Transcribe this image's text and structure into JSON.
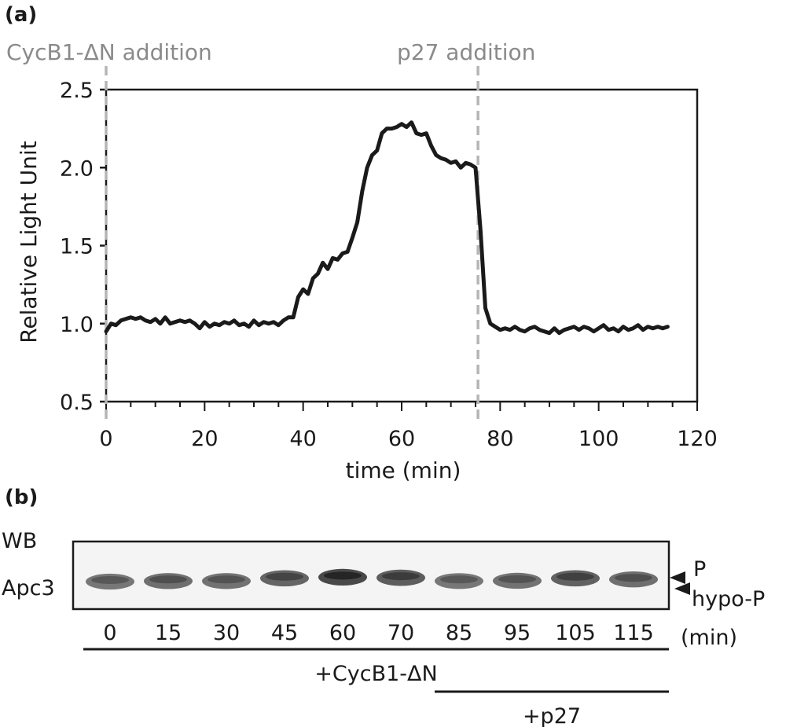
{
  "panel_a": {
    "label": "(a)",
    "annotations": [
      "CycB1-ΔN addition",
      "p27 addition"
    ]
  },
  "panel_b": {
    "label": "(b)",
    "wb_label": "WB",
    "protein_label": "Apc3",
    "band_labels": [
      "P",
      "hypo-P"
    ],
    "lanes": [
      "0",
      "15",
      "30",
      "45",
      "60",
      "70",
      "85",
      "95",
      "105",
      "115"
    ],
    "lane_unit": "(min)",
    "lane_intensity": [
      0.55,
      0.6,
      0.58,
      0.66,
      0.82,
      0.7,
      0.55,
      0.58,
      0.68,
      0.6
    ],
    "lane_phospho": [
      0.0,
      0.1,
      0.1,
      0.6,
      0.8,
      0.7,
      0.1,
      0.15,
      0.6,
      0.4
    ],
    "treatments": [
      {
        "label": "+CycB1-ΔN",
        "from_lane": 0,
        "to_lane": 9
      },
      {
        "label": "+p27",
        "from_lane": 6,
        "to_lane": 9
      }
    ]
  },
  "chart_data": {
    "type": "line",
    "xlabel": "time (min)",
    "ylabel": "Relative Light Unit",
    "xlim": [
      0,
      120
    ],
    "ylim": [
      0.5,
      2.5
    ],
    "xticks": [
      "0",
      "20",
      "40",
      "60",
      "80",
      "100",
      "120"
    ],
    "yticks": [
      "0.5",
      "1.0",
      "1.5",
      "2.0",
      "2.5"
    ],
    "vlines": [
      0,
      75.5
    ],
    "grid": false,
    "x": [
      0,
      1,
      2,
      3,
      4,
      5,
      6,
      7,
      8,
      9,
      10,
      11,
      12,
      13,
      14,
      15,
      16,
      17,
      18,
      19,
      20,
      21,
      22,
      23,
      24,
      25,
      26,
      27,
      28,
      29,
      30,
      31,
      32,
      33,
      34,
      35,
      36,
      37,
      38,
      39,
      40,
      41,
      42,
      43,
      44,
      45,
      46,
      47,
      48,
      49,
      50,
      51,
      52,
      53,
      54,
      55,
      56,
      57,
      58,
      59,
      60,
      61,
      62,
      63,
      64,
      65,
      66,
      67,
      68,
      69,
      70,
      71,
      72,
      73,
      74,
      75,
      76,
      77,
      78,
      79,
      80,
      81,
      82,
      83,
      84,
      85,
      86,
      87,
      88,
      89,
      90,
      91,
      92,
      93,
      94,
      95,
      96,
      97,
      98,
      99,
      100,
      101,
      102,
      103,
      104,
      105,
      106,
      107,
      108,
      109,
      110,
      111,
      112,
      113,
      114
    ],
    "y": [
      0.95,
      1.0,
      0.99,
      1.02,
      1.03,
      1.04,
      1.03,
      1.04,
      1.02,
      1.01,
      1.03,
      1.0,
      1.04,
      1.0,
      1.01,
      1.02,
      1.01,
      1.02,
      1.0,
      0.97,
      1.01,
      0.98,
      1.0,
      0.99,
      1.01,
      1.0,
      1.02,
      0.99,
      1.0,
      0.98,
      1.02,
      0.99,
      1.01,
      1.0,
      1.01,
      0.99,
      1.02,
      1.04,
      1.04,
      1.17,
      1.22,
      1.19,
      1.29,
      1.32,
      1.39,
      1.35,
      1.42,
      1.41,
      1.45,
      1.46,
      1.55,
      1.65,
      1.85,
      2.0,
      2.08,
      2.11,
      2.22,
      2.25,
      2.25,
      2.26,
      2.28,
      2.26,
      2.29,
      2.22,
      2.21,
      2.22,
      2.14,
      2.08,
      2.06,
      2.05,
      2.03,
      2.04,
      2.0,
      2.03,
      2.02,
      2.0,
      1.6,
      1.1,
      1.0,
      0.98,
      0.96,
      0.97,
      0.96,
      0.98,
      0.96,
      0.95,
      0.97,
      0.98,
      0.96,
      0.95,
      0.94,
      0.97,
      0.94,
      0.96,
      0.97,
      0.98,
      0.96,
      0.98,
      0.97,
      0.95,
      0.97,
      0.99,
      0.96,
      0.97,
      0.95,
      0.98,
      0.96,
      0.97,
      0.99,
      0.96,
      0.98,
      0.97,
      0.98,
      0.97,
      0.98
    ],
    "series": [
      {
        "name": "",
        "color": "#1a1a1a"
      }
    ]
  }
}
